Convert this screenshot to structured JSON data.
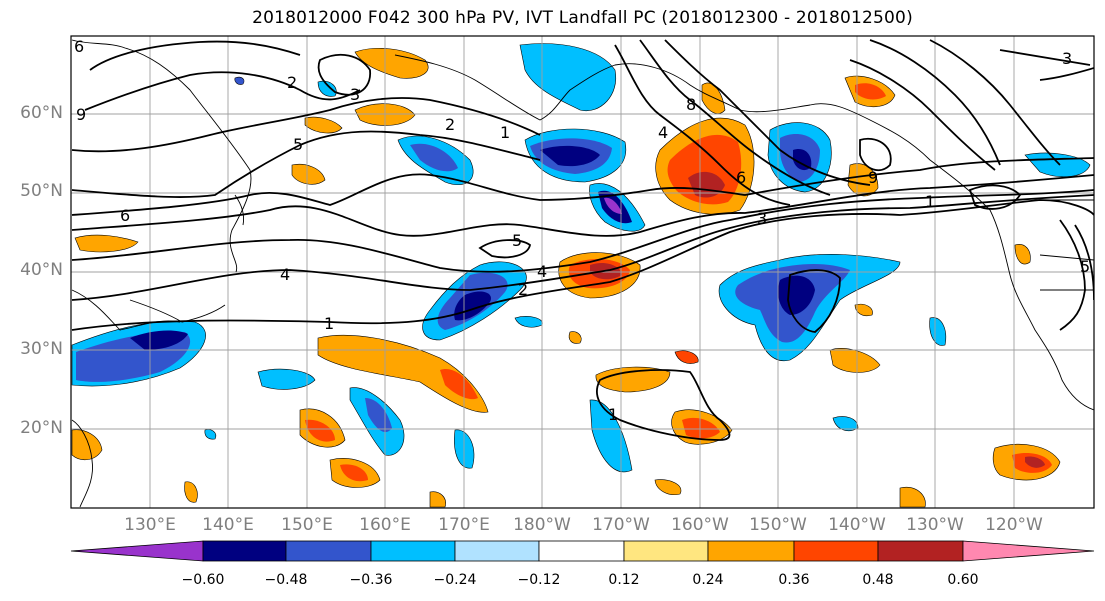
{
  "title": "2018012000 F042 300 hPa PV, IVT Landfall PC (2018012300 - 2018012500)",
  "lat_labels": [
    "60°N",
    "50°N",
    "40°N",
    "30°N",
    "20°N"
  ],
  "lon_labels": [
    "130°E",
    "140°E",
    "150°E",
    "160°E",
    "170°E",
    "180°W",
    "170°W",
    "160°W",
    "150°W",
    "140°W",
    "130°W",
    "120°W"
  ],
  "colorbar": {
    "ticks": [
      "−0.60",
      "−0.48",
      "−0.36",
      "−0.24",
      "−0.12",
      "0.12",
      "0.24",
      "0.36",
      "0.48",
      "0.60"
    ],
    "colors": [
      "#9933cc",
      "#000080",
      "#3355cc",
      "#00bfff",
      "#b0e2ff",
      "#ffffff",
      "#ffe680",
      "#ffa500",
      "#ff4500",
      "#b22222",
      "#ff88b0"
    ]
  },
  "contour_labels": [
    "2",
    "3",
    "2",
    "1",
    "4",
    "8",
    "6",
    "5",
    "6",
    "3",
    "1",
    "9",
    "4",
    "5",
    "4",
    "2",
    "1",
    "1",
    "6",
    "3",
    "5",
    "9"
  ],
  "colors": {
    "contour": "#000000",
    "coast": "#000000",
    "grid": "#a0a0a0",
    "axis_label": "#7f7f7f"
  }
}
